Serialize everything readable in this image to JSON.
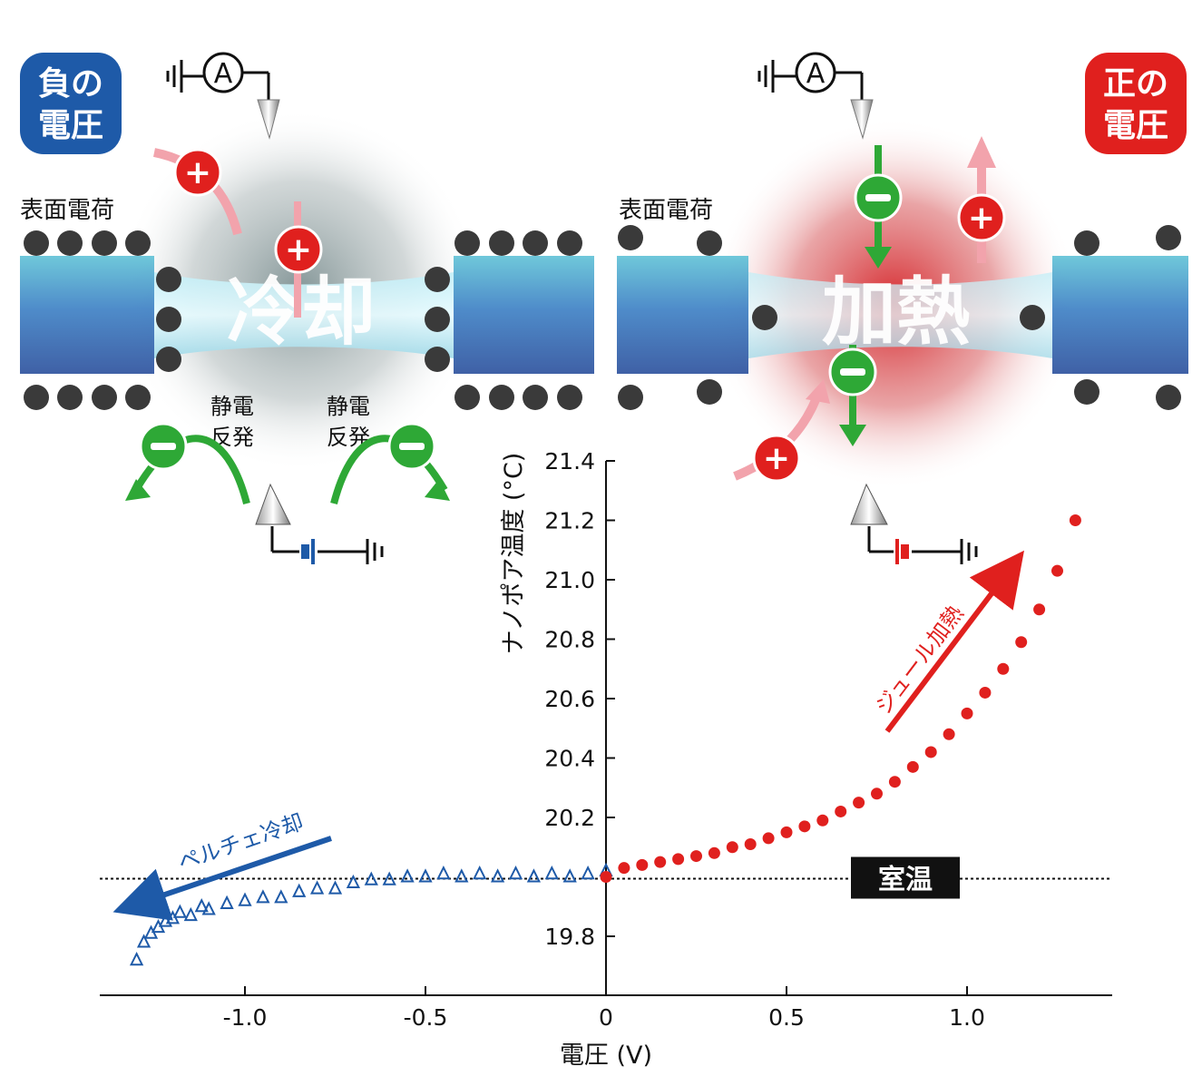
{
  "illustration": {
    "left_panel": {
      "badge": [
        "負の",
        "電圧"
      ],
      "surface_label": "表面電荷",
      "center_label": "冷却",
      "repulsion_label": [
        "静電",
        "反発"
      ],
      "ammeter": "A"
    },
    "right_panel": {
      "badge": [
        "正の",
        "電圧"
      ],
      "surface_label": "表面電荷",
      "center_label": "加熱",
      "ammeter": "A"
    }
  },
  "colors": {
    "negative_blue": "#1e5aa8",
    "positive_red": "#e0201e",
    "anion_green": "#2ea836",
    "surface_charge_gray": "#3a3a3a",
    "heat_red": "#d4292b",
    "cool_gray": "#7a8a8c"
  },
  "chart_data": {
    "type": "scatter",
    "title": "",
    "xlabel": "電圧 (V)",
    "ylabel": "ナノポア温度 (°C)",
    "xlim": [
      -1.4,
      1.4
    ],
    "ylim": [
      19.6,
      21.45
    ],
    "x_ticks": [
      -1.0,
      -0.5,
      0,
      0.5,
      1.0
    ],
    "x_tick_labels": [
      "-1.0",
      "-0.5",
      "0",
      "0.5",
      "1.0"
    ],
    "y_ticks": [
      19.8,
      20.2,
      20.4,
      20.6,
      20.8,
      21.0,
      21.2,
      21.4
    ],
    "y_tick_labels": [
      "19.8",
      "20.2",
      "20.4",
      "20.6",
      "20.8",
      "21.0",
      "21.2",
      "21.4"
    ],
    "reference_line": {
      "label": "室温",
      "y": 20.0
    },
    "annotations": {
      "cooling": "ペルチェ冷却",
      "heating": "ジュール加熱"
    },
    "series": [
      {
        "marker": "open-triangle",
        "color": "#1e5aa8",
        "points": [
          [
            -1.3,
            19.72
          ],
          [
            -1.28,
            19.78
          ],
          [
            -1.26,
            19.81
          ],
          [
            -1.24,
            19.83
          ],
          [
            -1.22,
            19.85
          ],
          [
            -1.2,
            19.86
          ],
          [
            -1.18,
            19.88
          ],
          [
            -1.15,
            19.87
          ],
          [
            -1.12,
            19.9
          ],
          [
            -1.1,
            19.89
          ],
          [
            -1.05,
            19.91
          ],
          [
            -1.0,
            19.92
          ],
          [
            -0.95,
            19.93
          ],
          [
            -0.9,
            19.93
          ],
          [
            -0.85,
            19.95
          ],
          [
            -0.8,
            19.96
          ],
          [
            -0.75,
            19.96
          ],
          [
            -0.7,
            19.98
          ],
          [
            -0.65,
            19.99
          ],
          [
            -0.6,
            19.99
          ],
          [
            -0.55,
            20.0
          ],
          [
            -0.5,
            20.0
          ],
          [
            -0.45,
            20.01
          ],
          [
            -0.4,
            20.0
          ],
          [
            -0.35,
            20.01
          ],
          [
            -0.3,
            20.0
          ],
          [
            -0.25,
            20.01
          ],
          [
            -0.2,
            20.0
          ],
          [
            -0.15,
            20.01
          ],
          [
            -0.1,
            20.0
          ],
          [
            -0.05,
            20.01
          ],
          [
            0.0,
            20.02
          ]
        ]
      },
      {
        "marker": "filled-circle",
        "color": "#e0201e",
        "points": [
          [
            0.0,
            20.0
          ],
          [
            0.05,
            20.03
          ],
          [
            0.1,
            20.04
          ],
          [
            0.15,
            20.05
          ],
          [
            0.2,
            20.06
          ],
          [
            0.25,
            20.07
          ],
          [
            0.3,
            20.08
          ],
          [
            0.35,
            20.1
          ],
          [
            0.4,
            20.11
          ],
          [
            0.45,
            20.13
          ],
          [
            0.5,
            20.15
          ],
          [
            0.55,
            20.17
          ],
          [
            0.6,
            20.19
          ],
          [
            0.65,
            20.22
          ],
          [
            0.7,
            20.25
          ],
          [
            0.75,
            20.28
          ],
          [
            0.8,
            20.32
          ],
          [
            0.85,
            20.37
          ],
          [
            0.9,
            20.42
          ],
          [
            0.95,
            20.48
          ],
          [
            1.0,
            20.55
          ],
          [
            1.05,
            20.62
          ],
          [
            1.1,
            20.7
          ],
          [
            1.15,
            20.79
          ],
          [
            1.2,
            20.9
          ],
          [
            1.25,
            21.03
          ],
          [
            1.3,
            21.2
          ]
        ]
      }
    ]
  }
}
